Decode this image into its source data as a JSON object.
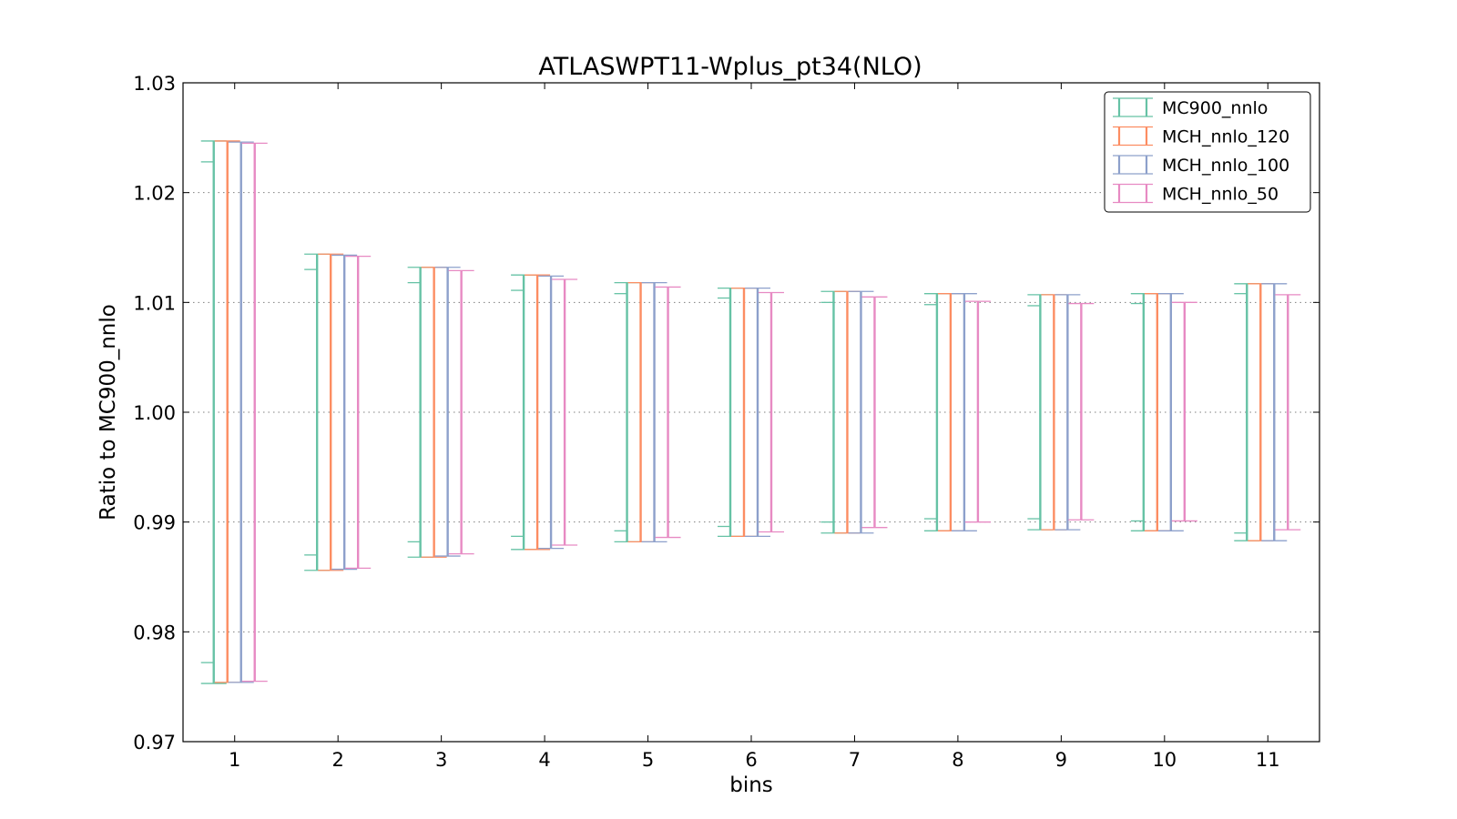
{
  "chart_data": {
    "type": "errorbar",
    "title": "ATLASWPT11-Wplus_pt34(NLO)",
    "xlabel": "bins",
    "ylabel": "Ratio to MC900_nnlo",
    "xlim": [
      0.5,
      11.5
    ],
    "ylim": [
      0.97,
      1.03
    ],
    "xticks": [
      "1",
      "2",
      "3",
      "4",
      "5",
      "6",
      "7",
      "8",
      "9",
      "10",
      "11"
    ],
    "yticks": [
      "0.97",
      "0.98",
      "0.99",
      "1.00",
      "1.01",
      "1.02",
      "1.03"
    ],
    "grid": "y-dotted",
    "legend_position": "top-right",
    "x": [
      1,
      2,
      3,
      4,
      5,
      6,
      7,
      8,
      9,
      10,
      11
    ],
    "series": [
      {
        "name": "MC900_nnlo",
        "color": "#66c2a5",
        "lower": [
          0.9753,
          0.9856,
          0.9868,
          0.9875,
          0.9882,
          0.9887,
          0.989,
          0.9892,
          0.9893,
          0.9892,
          0.9883
        ],
        "upper": [
          1.0247,
          1.0144,
          1.0132,
          1.0125,
          1.0118,
          1.0113,
          1.011,
          1.0108,
          1.0107,
          1.0108,
          1.0117
        ],
        "inner_lower": [
          0.9772,
          0.987,
          0.9882,
          0.9887,
          0.9892,
          0.9896,
          0.99,
          0.9903,
          0.9903,
          0.9901,
          0.989
        ],
        "inner_upper": [
          1.0228,
          1.013,
          1.0118,
          1.0111,
          1.0108,
          1.0104,
          1.01,
          1.0098,
          1.0097,
          1.0099,
          1.0108
        ]
      },
      {
        "name": "MCH_nnlo_120",
        "color": "#fc8d62",
        "lower": [
          0.9754,
          0.9856,
          0.9868,
          0.9875,
          0.9882,
          0.9887,
          0.989,
          0.9892,
          0.9893,
          0.9892,
          0.9883
        ],
        "upper": [
          1.0247,
          1.0144,
          1.0132,
          1.0125,
          1.0118,
          1.0113,
          1.011,
          1.0108,
          1.0107,
          1.0108,
          1.0117
        ]
      },
      {
        "name": "MCH_nnlo_100",
        "color": "#8da0cb",
        "lower": [
          0.9754,
          0.9857,
          0.9869,
          0.9876,
          0.9882,
          0.9887,
          0.989,
          0.9892,
          0.9893,
          0.9892,
          0.9883
        ],
        "upper": [
          1.0246,
          1.0143,
          1.0132,
          1.0124,
          1.0118,
          1.0113,
          1.011,
          1.0108,
          1.0107,
          1.0108,
          1.0117
        ]
      },
      {
        "name": "MCH_nnlo_50",
        "color": "#e78ac3",
        "lower": [
          0.9755,
          0.9858,
          0.9871,
          0.9879,
          0.9886,
          0.9891,
          0.9895,
          0.99,
          0.9902,
          0.9901,
          0.9893
        ],
        "upper": [
          1.0245,
          1.0142,
          1.0129,
          1.0121,
          1.0114,
          1.0109,
          1.0105,
          1.0101,
          1.0099,
          1.01,
          1.0107
        ]
      }
    ]
  }
}
